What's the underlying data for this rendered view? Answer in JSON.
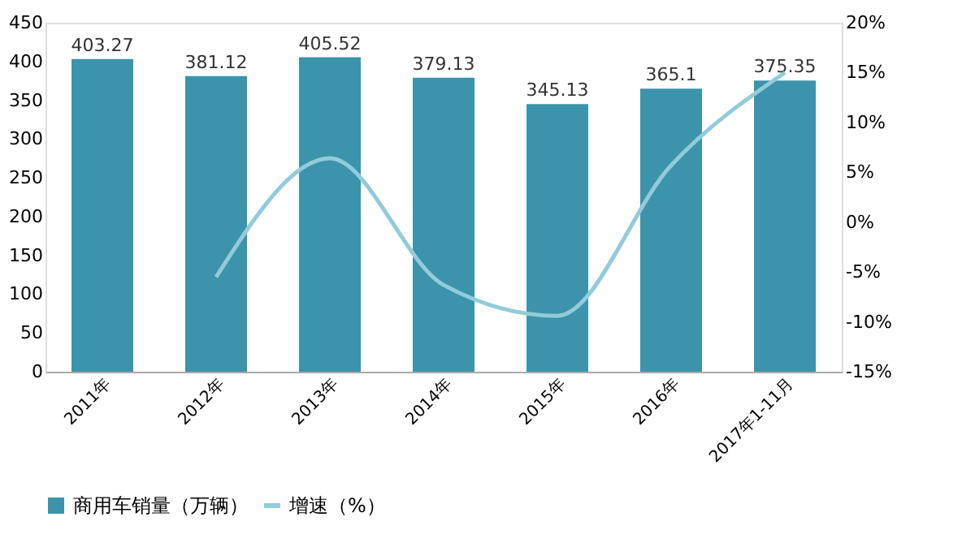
{
  "chart_data": {
    "type": "bar",
    "categories": [
      "2011年",
      "2012年",
      "2013年",
      "2014年",
      "2015年",
      "2016年",
      "2017年1-11月"
    ],
    "series": [
      {
        "name": "商用车销量（万辆）",
        "color": "#3b94ab",
        "values": [
          403.27,
          381.12,
          405.52,
          379.13,
          345.13,
          365.1,
          375.35
        ],
        "value_labels": [
          "403.27",
          "381.12",
          "405.52",
          "379.13",
          "345.13",
          "365.1",
          "375.35"
        ]
      },
      {
        "name": "增速（%）",
        "type": "line",
        "axis": "y2",
        "color": "#92cbd9",
        "values": [
          null,
          -5.5,
          6.4,
          -6.3,
          -9.4,
          5.7,
          15
        ]
      }
    ],
    "ylim": [
      0,
      450
    ],
    "yticks": [
      0,
      50,
      100,
      150,
      200,
      250,
      300,
      350,
      400,
      450
    ],
    "y2lim": [
      -15,
      20
    ],
    "y2ticks": [
      {
        "value": -15,
        "label": "-15%"
      },
      {
        "value": -10,
        "label": "-10%"
      },
      {
        "value": -5,
        "label": "-5%"
      },
      {
        "value": 0,
        "label": "0%"
      },
      {
        "value": 5,
        "label": "5%"
      },
      {
        "value": 10,
        "label": "10%"
      },
      {
        "value": 15,
        "label": "15%"
      },
      {
        "value": 20,
        "label": "20%"
      }
    ],
    "legend": "bottom",
    "grid": false,
    "marker": "none",
    "line_style": "solid"
  }
}
